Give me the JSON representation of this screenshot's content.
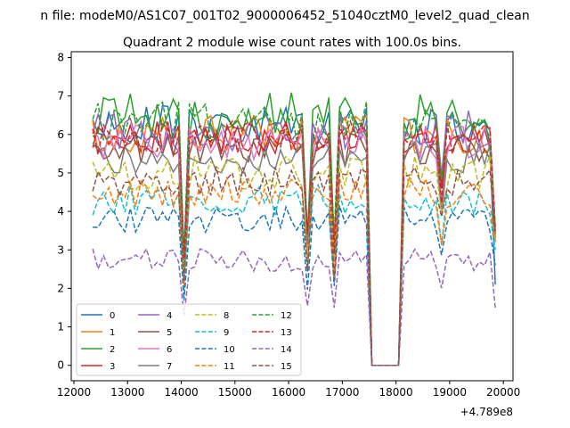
{
  "figure": {
    "suptitle": "n file: modeM0/AS1C07_001T02_9000006452_51040cztM0_level2_quad_clean",
    "title": "Quadrant 2 module wise count rates with 100.0s bins.",
    "offset_label": "+4.789e8"
  },
  "chart_data": {
    "type": "line",
    "title": "Quadrant 2 module wise count rates with 100.0s bins.",
    "xlabel": "",
    "ylabel": "",
    "x_offset": 478900000,
    "xlim": [
      11950,
      20180
    ],
    "ylim": [
      -0.4,
      8.15
    ],
    "xticks": [
      12000,
      13000,
      14000,
      15000,
      16000,
      17000,
      18000,
      19000,
      20000
    ],
    "xtick_labels": [
      "12000",
      "13000",
      "14000",
      "15000",
      "16000",
      "17000",
      "18000",
      "19000",
      "20000"
    ],
    "yticks": [
      0,
      1,
      2,
      3,
      4,
      5,
      6,
      7,
      8
    ],
    "ytick_labels": [
      "0",
      "1",
      "2",
      "3",
      "4",
      "5",
      "6",
      "7",
      "8"
    ],
    "grid": false,
    "legend_placement": "lower-left",
    "legend_columns": 4,
    "x_start": 12350,
    "x_step": 100,
    "gap_start": 17450,
    "gap_end": 18150,
    "x_end": 19850,
    "series": [
      {
        "name": "0",
        "color": "#1f77b4",
        "dash": "solid",
        "level": 6.2,
        "amp": 0.55,
        "seed": 1,
        "end": 2.1
      },
      {
        "name": "1",
        "color": "#ff7f0e",
        "dash": "solid",
        "level": 6.0,
        "amp": 0.5,
        "seed": 2,
        "end": 3.3
      },
      {
        "name": "2",
        "color": "#2ca02c",
        "dash": "solid",
        "level": 6.5,
        "amp": 0.6,
        "seed": 3,
        "end": 3.6
      },
      {
        "name": "3",
        "color": "#d62728",
        "dash": "solid",
        "level": 5.9,
        "amp": 0.45,
        "seed": 4,
        "end": 3.5
      },
      {
        "name": "4",
        "color": "#9467bd",
        "dash": "solid",
        "level": 6.1,
        "amp": 0.55,
        "seed": 5,
        "end": 3.2
      },
      {
        "name": "5",
        "color": "#8c564b",
        "dash": "solid",
        "level": 5.6,
        "amp": 0.45,
        "seed": 6,
        "end": 3.4
      },
      {
        "name": "6",
        "color": "#e377c2",
        "dash": "solid",
        "level": 5.8,
        "amp": 0.45,
        "seed": 7,
        "end": 3.4
      },
      {
        "name": "7",
        "color": "#7f7f7f",
        "dash": "solid",
        "level": 5.4,
        "amp": 0.4,
        "seed": 8,
        "end": 3.3
      },
      {
        "name": "8",
        "color": "#bcbd22",
        "dash": "dashed",
        "level": 5.0,
        "amp": 0.45,
        "seed": 9,
        "end": 3.3
      },
      {
        "name": "9",
        "color": "#17becf",
        "dash": "dashed",
        "level": 4.3,
        "amp": 0.4,
        "seed": 10,
        "end": 3.0
      },
      {
        "name": "10",
        "color": "#1f77b4",
        "dash": "dashed",
        "level": 3.8,
        "amp": 0.35,
        "seed": 11,
        "end": 2.6
      },
      {
        "name": "11",
        "color": "#ff7f0e",
        "dash": "dashed",
        "level": 4.5,
        "amp": 0.4,
        "seed": 12,
        "end": 3.2
      },
      {
        "name": "12",
        "color": "#2ca02c",
        "dash": "dashed",
        "level": 6.3,
        "amp": 0.55,
        "seed": 13,
        "end": 3.6
      },
      {
        "name": "13",
        "color": "#d62728",
        "dash": "dashed",
        "level": 5.9,
        "amp": 0.45,
        "seed": 14,
        "end": 3.5
      },
      {
        "name": "14",
        "color": "#9467bd",
        "dash": "dashed",
        "level": 2.75,
        "amp": 0.3,
        "seed": 15,
        "end": 1.5
      },
      {
        "name": "15",
        "color": "#8c564b",
        "dash": "dashed",
        "level": 4.8,
        "amp": 0.4,
        "seed": 16,
        "end": 3.4
      }
    ]
  }
}
